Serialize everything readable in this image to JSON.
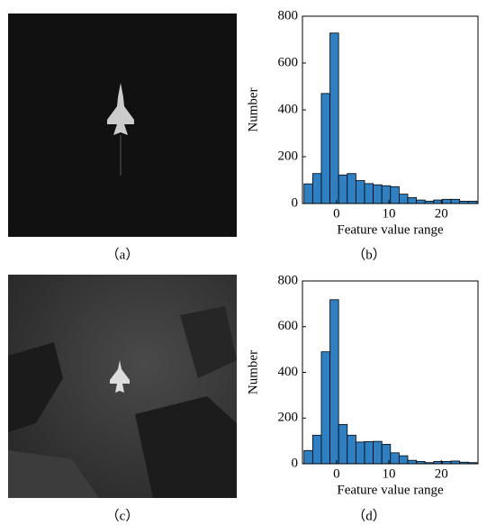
{
  "chart_data": [
    {
      "type": "histogram",
      "xlabel": "Feature value range",
      "ylabel": "Number",
      "color": "#2f80c2",
      "bins": [
        -6.2,
        -4.55,
        -2.9,
        -1.25,
        0.4,
        2.05,
        3.7,
        5.35,
        7,
        8.65,
        10.3,
        11.95,
        13.6,
        15.25,
        16.9,
        18.55,
        20.2,
        21.85,
        23.5,
        25.15,
        26.8
      ],
      "counts": [
        84,
        128,
        470,
        728,
        122,
        128,
        98,
        85,
        80,
        76,
        72,
        40,
        25,
        15,
        10,
        15,
        18,
        18,
        10,
        10
      ],
      "xlim": [
        -6.5,
        27
      ],
      "xticks": [
        0,
        10,
        20
      ],
      "ylim": [
        0,
        800
      ],
      "yticks": [
        0,
        200,
        400,
        600,
        800
      ]
    },
    {
      "type": "histogram",
      "xlabel": "Feature value range",
      "ylabel": "Number",
      "color": "#2f80c2",
      "bins": [
        -6.2,
        -4.55,
        -2.9,
        -1.25,
        0.4,
        2.05,
        3.7,
        5.35,
        7,
        8.65,
        10.3,
        11.95,
        13.6,
        15.25,
        16.9,
        18.55,
        20.2,
        21.85,
        23.5,
        25.15,
        26.8
      ],
      "counts": [
        58,
        125,
        490,
        718,
        172,
        125,
        95,
        97,
        98,
        85,
        48,
        35,
        15,
        10,
        5,
        10,
        10,
        12,
        7,
        5
      ],
      "xlim": [
        -6.5,
        27
      ],
      "xticks": [
        0,
        10,
        20
      ],
      "ylim": [
        0,
        800
      ],
      "yticks": [
        0,
        200,
        400,
        600,
        800
      ]
    }
  ],
  "captions": [
    "（a）",
    "（b）",
    "（c）",
    "（d）"
  ]
}
